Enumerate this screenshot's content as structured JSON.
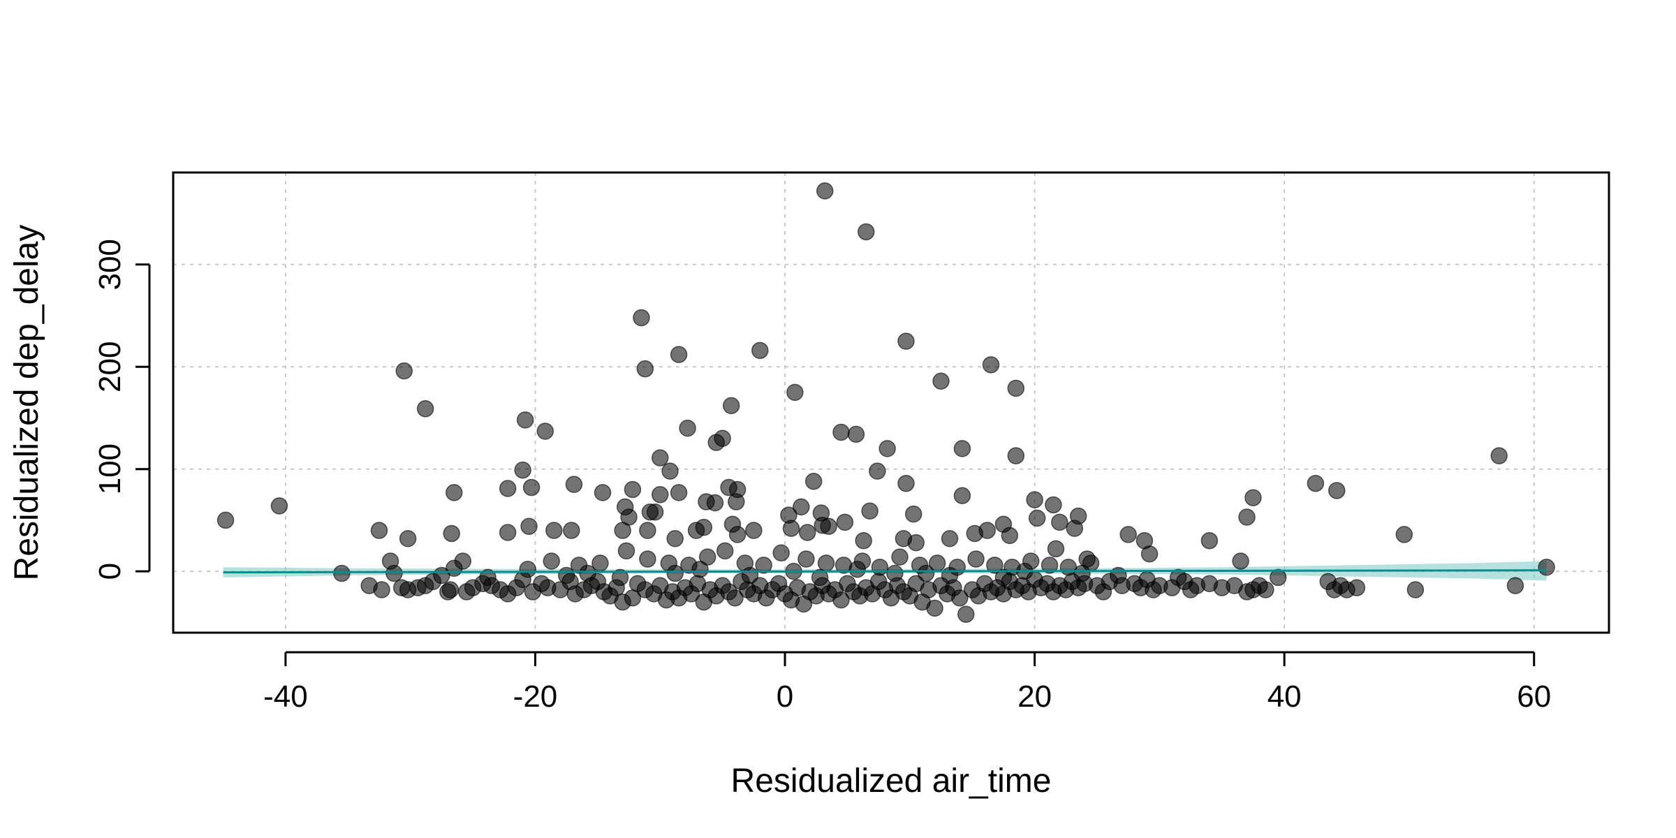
{
  "chart_data": {
    "type": "scatter",
    "title": "",
    "xlabel": "Residualized air_time",
    "ylabel": "Residualized dep_delay",
    "xlim": [
      -49,
      66
    ],
    "ylim": [
      -60,
      390
    ],
    "xticks": [
      -40,
      -20,
      0,
      20,
      40,
      60
    ],
    "yticks": [
      0,
      100,
      200,
      300
    ],
    "xtick_labels": [
      "-40",
      "-20",
      "0",
      "20",
      "40",
      "60"
    ],
    "ytick_labels": [
      "0",
      "100",
      "200",
      "300"
    ],
    "grid": true,
    "legend": "none",
    "colors": {
      "points": "#000000",
      "fit_line": "#0f8b8d",
      "band": "#7cc9c5"
    },
    "fit_line": {
      "x": [
        -45,
        61
      ],
      "y": [
        -1,
        1
      ]
    },
    "fit_band": {
      "x": [
        -45,
        -35,
        -25,
        -15,
        -5,
        5,
        15,
        25,
        35,
        45,
        55,
        61
      ],
      "lower": [
        -6,
        -4,
        -3,
        -2.5,
        -2,
        -2,
        -2,
        -2.5,
        -3,
        -5,
        -7,
        -9
      ],
      "upper": [
        4,
        3,
        2.5,
        2,
        2,
        2,
        2.5,
        3,
        4,
        6,
        8,
        10
      ]
    },
    "series": [
      {
        "values": [
          [
            3.2,
            372
          ],
          [
            6.5,
            332
          ],
          [
            -11.5,
            248
          ],
          [
            -2,
            216
          ],
          [
            9.7,
            225
          ],
          [
            -8.5,
            212
          ],
          [
            -11.2,
            198
          ],
          [
            -30.5,
            196
          ],
          [
            16.5,
            202
          ],
          [
            12.5,
            186
          ],
          [
            18.5,
            179
          ],
          [
            0.8,
            175
          ],
          [
            -28.8,
            159
          ],
          [
            -4.3,
            162
          ],
          [
            -20.8,
            148
          ],
          [
            -7.8,
            140
          ],
          [
            -19.2,
            137
          ],
          [
            4.5,
            136
          ],
          [
            5.7,
            134
          ],
          [
            -5.5,
            126
          ],
          [
            -5,
            130
          ],
          [
            8.2,
            120
          ],
          [
            14.2,
            120
          ],
          [
            18.5,
            113
          ],
          [
            57.2,
            113
          ],
          [
            -10,
            111
          ],
          [
            -21,
            99
          ],
          [
            -9.2,
            98
          ],
          [
            7.4,
            98
          ],
          [
            9.7,
            86
          ],
          [
            -22.2,
            81
          ],
          [
            -20.3,
            82
          ],
          [
            -16.9,
            85
          ],
          [
            -4.5,
            82
          ],
          [
            -3.8,
            80
          ],
          [
            2.3,
            88
          ],
          [
            -26.5,
            77
          ],
          [
            -14.6,
            77
          ],
          [
            -12.2,
            80
          ],
          [
            -10,
            75
          ],
          [
            -8.5,
            77
          ],
          [
            42.5,
            86
          ],
          [
            44.2,
            79
          ],
          [
            -44.8,
            50
          ],
          [
            -40.5,
            64
          ],
          [
            -12.8,
            63
          ],
          [
            -12.5,
            53
          ],
          [
            -6.3,
            68
          ],
          [
            -5.6,
            67
          ],
          [
            -3.9,
            68
          ],
          [
            1.3,
            63
          ],
          [
            2.9,
            57
          ],
          [
            6.8,
            59
          ],
          [
            10.3,
            56
          ],
          [
            14.2,
            74
          ],
          [
            20,
            70
          ],
          [
            21.5,
            65
          ],
          [
            23.5,
            54
          ],
          [
            37.5,
            72
          ],
          [
            37,
            53
          ],
          [
            -32.5,
            40
          ],
          [
            -30.2,
            32
          ],
          [
            -26.7,
            37
          ],
          [
            -22.2,
            38
          ],
          [
            -20.5,
            44
          ],
          [
            -18.5,
            40
          ],
          [
            -17.1,
            40
          ],
          [
            -13,
            40
          ],
          [
            -11,
            40
          ],
          [
            -8.8,
            32
          ],
          [
            -7.1,
            40
          ],
          [
            -6.5,
            43
          ],
          [
            -4.2,
            46
          ],
          [
            -3.8,
            36
          ],
          [
            -2.5,
            40
          ],
          [
            0.3,
            55
          ],
          [
            0.5,
            42
          ],
          [
            1.8,
            38
          ],
          [
            3,
            45
          ],
          [
            3.5,
            44
          ],
          [
            4.8,
            48
          ],
          [
            6.3,
            30
          ],
          [
            9.5,
            32
          ],
          [
            10.5,
            28
          ],
          [
            13.2,
            32
          ],
          [
            15.2,
            37
          ],
          [
            16.2,
            40
          ],
          [
            17.5,
            46
          ],
          [
            18,
            35
          ],
          [
            20.2,
            52
          ],
          [
            21.7,
            22
          ],
          [
            22,
            48
          ],
          [
            23.2,
            42
          ],
          [
            27.5,
            36
          ],
          [
            28.8,
            30
          ],
          [
            29.2,
            17
          ],
          [
            34,
            30
          ],
          [
            49.6,
            36
          ],
          [
            -35.5,
            -2
          ],
          [
            -33.3,
            -14
          ],
          [
            -32.3,
            -18
          ],
          [
            -31.6,
            10
          ],
          [
            -31.3,
            -2
          ],
          [
            -30.7,
            -16
          ],
          [
            -30.2,
            -18
          ],
          [
            -29.4,
            -16
          ],
          [
            -28.8,
            -14
          ],
          [
            -28.2,
            -10
          ],
          [
            -27.5,
            -4
          ],
          [
            -26.8,
            -18
          ],
          [
            -26.5,
            3
          ],
          [
            -25.8,
            10
          ],
          [
            -25.5,
            -20
          ],
          [
            -25,
            -16
          ],
          [
            -24.2,
            -12
          ],
          [
            -23.5,
            -14
          ],
          [
            -22.8,
            -18
          ],
          [
            -22.2,
            -22
          ],
          [
            -21.5,
            -16
          ],
          [
            -21,
            -8
          ],
          [
            -20.2,
            -20
          ],
          [
            -19.5,
            -12
          ],
          [
            -19,
            -16
          ],
          [
            -18,
            -18
          ],
          [
            -17.2,
            -10
          ],
          [
            -16.8,
            -22
          ],
          [
            -16.1,
            -18
          ],
          [
            -15.5,
            -14
          ],
          [
            -15,
            -10
          ],
          [
            -14.5,
            -20
          ],
          [
            -14,
            -24
          ],
          [
            -13.5,
            -16
          ],
          [
            -13,
            -30
          ],
          [
            -12.2,
            -26
          ],
          [
            -11.8,
            -12
          ],
          [
            -11.2,
            -18
          ],
          [
            -10.5,
            -22
          ],
          [
            -10,
            -14
          ],
          [
            -9.5,
            -28
          ],
          [
            -9,
            -20
          ],
          [
            -8.5,
            -26
          ],
          [
            -8,
            -16
          ],
          [
            -7.5,
            -22
          ],
          [
            -7,
            -12
          ],
          [
            -6.5,
            -30
          ],
          [
            -6,
            -18
          ],
          [
            -5.5,
            -24
          ],
          [
            -5,
            -14
          ],
          [
            -4.5,
            -20
          ],
          [
            -4,
            -26
          ],
          [
            -3.5,
            -10
          ],
          [
            -3,
            -18
          ],
          [
            -2.5,
            -22
          ],
          [
            -2,
            -14
          ],
          [
            -1.5,
            -26
          ],
          [
            -1,
            -18
          ],
          [
            -0.5,
            -12
          ],
          [
            0,
            -22
          ],
          [
            0.5,
            -28
          ],
          [
            1,
            -16
          ],
          [
            1.5,
            -32
          ],
          [
            2,
            -20
          ],
          [
            2.5,
            -24
          ],
          [
            3,
            -14
          ],
          [
            3.5,
            -22
          ],
          [
            4,
            -18
          ],
          [
            4.5,
            -28
          ],
          [
            5,
            -12
          ],
          [
            5.5,
            -20
          ],
          [
            6,
            -24
          ],
          [
            6.5,
            -16
          ],
          [
            7,
            -22
          ],
          [
            7.5,
            -10
          ],
          [
            8,
            -18
          ],
          [
            8.5,
            -26
          ],
          [
            9,
            -14
          ],
          [
            9.5,
            -20
          ],
          [
            10,
            -24
          ],
          [
            10.5,
            -12
          ],
          [
            11,
            -30
          ],
          [
            11.5,
            -18
          ],
          [
            12,
            -36
          ],
          [
            12.5,
            -14
          ],
          [
            13,
            -22
          ],
          [
            13.5,
            -16
          ],
          [
            14,
            -26
          ],
          [
            14.5,
            -42
          ],
          [
            15,
            -18
          ],
          [
            15.5,
            -24
          ],
          [
            16,
            -12
          ],
          [
            16.5,
            -20
          ],
          [
            17,
            -16
          ],
          [
            17.5,
            -22
          ],
          [
            18,
            -10
          ],
          [
            18.5,
            -18
          ],
          [
            19,
            -14
          ],
          [
            19.5,
            -20
          ],
          [
            20,
            -8
          ],
          [
            20.5,
            -16
          ],
          [
            21,
            -12
          ],
          [
            21.5,
            -20
          ],
          [
            22,
            -14
          ],
          [
            22.5,
            -18
          ],
          [
            23,
            -10
          ],
          [
            23.5,
            -16
          ],
          [
            24,
            -12
          ],
          [
            24.5,
            8
          ],
          [
            25,
            -14
          ],
          [
            25.5,
            -20
          ],
          [
            26,
            -10
          ],
          [
            27,
            -14
          ],
          [
            28,
            -12
          ],
          [
            28.5,
            -16
          ],
          [
            29,
            -8
          ],
          [
            29.5,
            -18
          ],
          [
            30,
            -14
          ],
          [
            31,
            -16
          ],
          [
            32,
            -10
          ],
          [
            32.5,
            -18
          ],
          [
            33,
            -14
          ],
          [
            34,
            -12
          ],
          [
            35,
            -16
          ],
          [
            36,
            -14
          ],
          [
            36.5,
            10
          ],
          [
            37,
            -20
          ],
          [
            37.5,
            -18
          ],
          [
            38,
            -14
          ],
          [
            38.5,
            -18
          ],
          [
            39.5,
            -6
          ],
          [
            43.5,
            -10
          ],
          [
            44,
            -18
          ],
          [
            44.5,
            -14
          ],
          [
            45,
            -18
          ],
          [
            45.8,
            -16
          ],
          [
            50.5,
            -18
          ],
          [
            58.5,
            -14
          ],
          [
            61,
            4
          ],
          [
            -27,
            -20
          ],
          [
            -18.7,
            10
          ],
          [
            -16.5,
            6
          ],
          [
            -14.8,
            8
          ],
          [
            -12.7,
            20
          ],
          [
            -11,
            12
          ],
          [
            -9.3,
            8
          ],
          [
            -7.7,
            6
          ],
          [
            -6.2,
            14
          ],
          [
            -4.8,
            20
          ],
          [
            -3.2,
            8
          ],
          [
            -1.7,
            6
          ],
          [
            -0.3,
            18
          ],
          [
            1.7,
            12
          ],
          [
            3.3,
            8
          ],
          [
            4.7,
            6
          ],
          [
            6.2,
            10
          ],
          [
            7.6,
            4
          ],
          [
            9.2,
            14
          ],
          [
            10.8,
            6
          ],
          [
            12.2,
            8
          ],
          [
            13.8,
            4
          ],
          [
            15.3,
            12
          ],
          [
            16.8,
            6
          ],
          [
            18.2,
            4
          ],
          [
            19.7,
            10
          ],
          [
            21.2,
            6
          ],
          [
            22.7,
            4
          ],
          [
            24.2,
            12
          ],
          [
            -10.4,
            58
          ],
          [
            -10.8,
            58
          ],
          [
            -23.8,
            -6
          ],
          [
            -17.5,
            -4
          ],
          [
            -13.2,
            -6
          ],
          [
            -8.8,
            -2
          ],
          [
            -2.8,
            -4
          ],
          [
            2.8,
            -6
          ],
          [
            8.8,
            -2
          ],
          [
            13.2,
            -4
          ],
          [
            17.5,
            -6
          ],
          [
            23.8,
            -2
          ],
          [
            -20.6,
            2
          ],
          [
            -15.8,
            -2
          ],
          [
            -6.8,
            2
          ],
          [
            0.7,
            0
          ],
          [
            5.8,
            2
          ],
          [
            11.3,
            -2
          ],
          [
            19.2,
            0
          ],
          [
            26.7,
            -4
          ],
          [
            31.5,
            -6
          ]
        ]
      }
    ]
  }
}
